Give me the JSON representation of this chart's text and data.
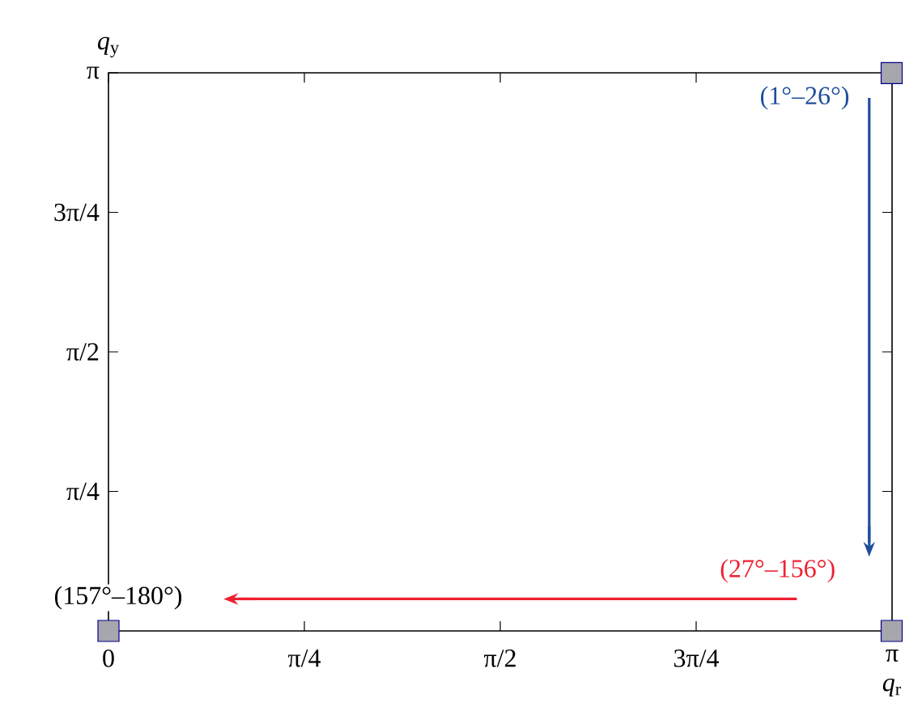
{
  "chart_data": {
    "type": "scatter",
    "xlabel": "*q*$_{r}$",
    "ylabel": "*q*$_{y}$",
    "xlim": [
      0,
      3.1416
    ],
    "ylim": [
      0,
      3.1416
    ],
    "xticks": [
      {
        "value": 0,
        "label": "0"
      },
      {
        "value": 0.7854,
        "label": "π/4"
      },
      {
        "value": 1.5708,
        "label": "π/2"
      },
      {
        "value": 2.3562,
        "label": "3π/4"
      },
      {
        "value": 3.1416,
        "label": "π"
      }
    ],
    "yticks": [
      {
        "value": 0.7854,
        "label": "π/4"
      },
      {
        "value": 1.5708,
        "label": "π/2"
      },
      {
        "value": 2.3562,
        "label": "3π/4"
      },
      {
        "value": 3.1416,
        "label": "π"
      }
    ],
    "series": [
      {
        "marker": "square",
        "color": "#a6a6ad",
        "x": [
          3.14,
          3.14,
          0
        ],
        "values": [
          3.14,
          0,
          0
        ]
      },
      {
        "type": "line",
        "name": "(1°–26°)",
        "color": "#1f4e9c",
        "x": [
          3.05,
          3.05
        ],
        "values": [
          3.0,
          0.5
        ]
      },
      {
        "type": "line",
        "name": "(27°–156°)",
        "color": "#ee2030",
        "x": [
          2.76,
          0.52
        ],
        "values": [
          0.18,
          0.18
        ]
      }
    ],
    "annotations": [
      {
        "text": "(157°–180°)",
        "x": 0,
        "y": 0
      }
    ]
  }
}
